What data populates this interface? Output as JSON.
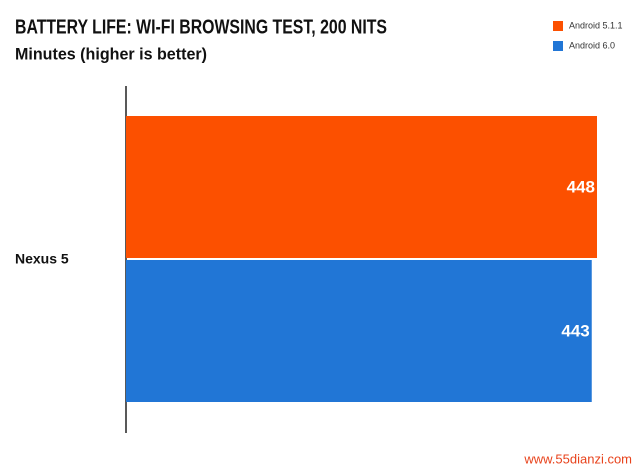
{
  "chart_data": {
    "type": "bar",
    "orientation": "horizontal",
    "title": "BATTERY LIFE: WI-FI BROWSING TEST, 200 NITS",
    "subtitle": "Minutes (higher is better)",
    "categories": [
      "Nexus 5"
    ],
    "series": [
      {
        "name": "Android 5.1.1",
        "color": "#fc5000",
        "values": [
          448
        ]
      },
      {
        "name": "Android 6.0",
        "color": "#2176d6",
        "values": [
          443
        ]
      }
    ],
    "legend": "top-right",
    "watermark": "www.55dianzi.com"
  }
}
